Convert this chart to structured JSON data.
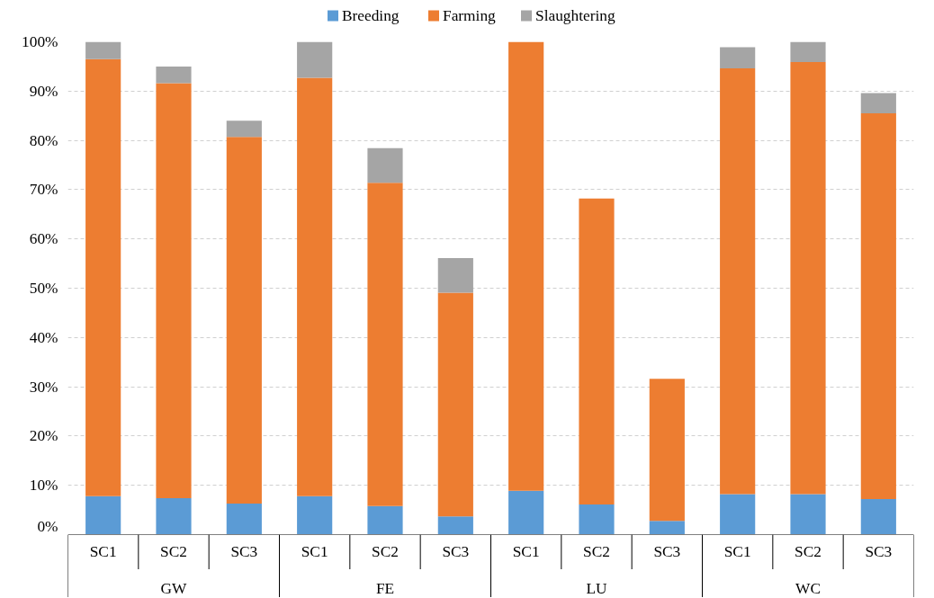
{
  "chart_data": {
    "type": "bar",
    "stacked": true,
    "categories": [
      "SC1",
      "SC2",
      "SC3",
      "SC1",
      "SC2",
      "SC3",
      "SC1",
      "SC2",
      "SC3",
      "SC1",
      "SC2",
      "SC3"
    ],
    "annotations": [
      "GW",
      "FE",
      "LU",
      "WC"
    ],
    "series": [
      {
        "name": "Breeding",
        "color": "#5b9bd5",
        "values": [
          7.8,
          7.4,
          6.3,
          7.8,
          5.8,
          3.7,
          8.9,
          6.1,
          2.8,
          8.2,
          8.2,
          7.2
        ]
      },
      {
        "name": "Farming",
        "color": "#ed7d31",
        "values": [
          88.7,
          84.2,
          74.4,
          84.9,
          65.6,
          45.4,
          91.1,
          62.1,
          28.8,
          86.4,
          87.7,
          78.3
        ]
      },
      {
        "name": "Slaughtering",
        "color": "#a5a5a5",
        "values": [
          3.5,
          3.4,
          3.3,
          7.3,
          7.0,
          7.0,
          0,
          0,
          0,
          4.3,
          4.1,
          4.1
        ]
      }
    ],
    "ylim": [
      0,
      100
    ],
    "yticks": [
      {
        "value": 0,
        "label": "0%"
      },
      {
        "value": 10,
        "label": "10%"
      },
      {
        "value": 20,
        "label": "20%"
      },
      {
        "value": 30,
        "label": "30%"
      },
      {
        "value": 40,
        "label": "40%"
      },
      {
        "value": 50,
        "label": "50%"
      },
      {
        "value": 60,
        "label": "60%"
      },
      {
        "value": 70,
        "label": "70%"
      },
      {
        "value": 80,
        "label": "80%"
      },
      {
        "value": 90,
        "label": "90%"
      },
      {
        "value": 100,
        "label": "100%"
      }
    ],
    "grid": "y",
    "legend": "top"
  }
}
